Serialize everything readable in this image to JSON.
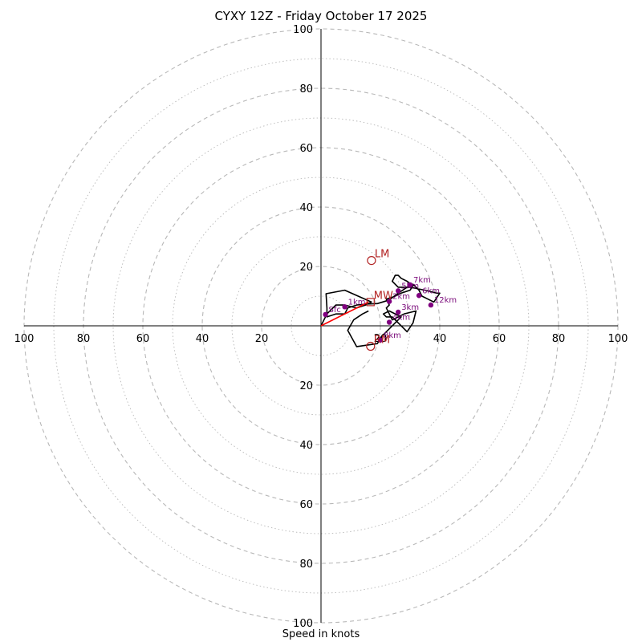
{
  "chart_data": {
    "type": "scatter",
    "subtype": "hodograph",
    "title": "CYXY 12Z - Friday October 17 2025",
    "xlabel": "Speed in knots",
    "ylabel": "",
    "range_knots": 100,
    "ring_step_major": 20,
    "ring_step_minor": 10,
    "axis_tick_labels": [
      "20",
      "40",
      "60",
      "80",
      "100"
    ],
    "grid": true,
    "colors": {
      "hodograph": "#000000",
      "markers": "#800080",
      "marker_labels": "#7a0a7a",
      "storm_motion": "#b22222",
      "shear_vector": "#ff0000",
      "grid": "#b8b8b8"
    },
    "hodograph_trace": [
      [
        0.0,
        0.0
      ],
      [
        2,
        4
      ],
      [
        5,
        7
      ],
      [
        8,
        7
      ],
      [
        12,
        6
      ],
      [
        15,
        7
      ],
      [
        17,
        8
      ],
      [
        8,
        12
      ],
      [
        1.7,
        10.8
      ],
      [
        2,
        6
      ],
      [
        2,
        3
      ],
      [
        5,
        4
      ],
      [
        8,
        4
      ],
      [
        9,
        6
      ],
      [
        12,
        7
      ],
      [
        15,
        7.3
      ],
      [
        19,
        7.5
      ],
      [
        23,
        8.7
      ],
      [
        26,
        11
      ],
      [
        29,
        13
      ],
      [
        31,
        14
      ],
      [
        33,
        12
      ],
      [
        34,
        10
      ],
      [
        36,
        9
      ],
      [
        38,
        8
      ],
      [
        40,
        11
      ],
      [
        39,
        11
      ],
      [
        35,
        12
      ],
      [
        30,
        13
      ],
      [
        26,
        13
      ],
      [
        24,
        15
      ],
      [
        25,
        17
      ],
      [
        26,
        17
      ],
      [
        27,
        16
      ],
      [
        29,
        15
      ],
      [
        31,
        13.5
      ],
      [
        30,
        12
      ],
      [
        27,
        11
      ],
      [
        25,
        10
      ],
      [
        22,
        9
      ],
      [
        23,
        7
      ],
      [
        22,
        6
      ],
      [
        23,
        4
      ],
      [
        24,
        2
      ],
      [
        26,
        3
      ],
      [
        28,
        4
      ],
      [
        32,
        5
      ],
      [
        31,
        1
      ],
      [
        29,
        -2
      ],
      [
        28,
        -1
      ],
      [
        26,
        1
      ],
      [
        24,
        3
      ],
      [
        22,
        3
      ],
      [
        21,
        4
      ],
      [
        23,
        5
      ],
      [
        27,
        3
      ],
      [
        25,
        1
      ],
      [
        22,
        -2
      ],
      [
        20,
        -4
      ],
      [
        19,
        -6
      ],
      [
        12,
        -7
      ],
      [
        9,
        -1.5
      ],
      [
        11,
        2
      ],
      [
        14,
        4
      ],
      [
        16,
        5
      ]
    ],
    "height_markers": [
      {
        "label": "Sfc",
        "u": 1.5,
        "v": 3.8
      },
      {
        "label": "1km",
        "u": 8,
        "v": 6.4
      },
      {
        "label": "2km",
        "u": 23,
        "v": 8.2
      },
      {
        "label": "3km",
        "u": 26,
        "v": 4.6
      },
      {
        "label": "4km",
        "u": 23,
        "v": 1.2
      },
      {
        "label": "5km",
        "u": 26,
        "v": 11.8
      },
      {
        "label": "6km",
        "u": 33,
        "v": 10.2
      },
      {
        "label": "7km",
        "u": 30,
        "v": 13.8
      },
      {
        "label": "8km",
        "u": 20,
        "v": -4.8
      },
      {
        "label": "12km",
        "u": 37,
        "v": 7
      }
    ],
    "storm_motions": [
      {
        "label": "LM",
        "u": 17,
        "v": 22,
        "marker": "circle"
      },
      {
        "label": "MW",
        "u": 16.7,
        "v": 8,
        "marker": "square"
      },
      {
        "label": "RM",
        "u": 16.7,
        "v": -6.9,
        "marker": "circle"
      }
    ],
    "shear_vector": {
      "from": [
        0,
        0
      ],
      "to": [
        16,
        8
      ]
    }
  }
}
